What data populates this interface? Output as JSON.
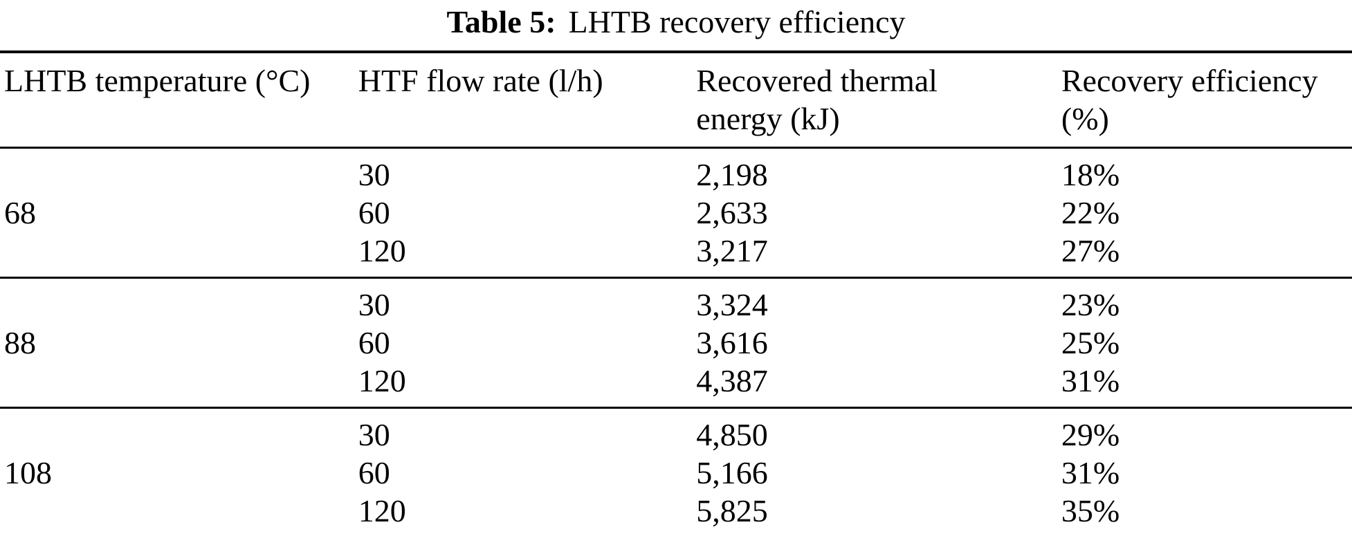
{
  "caption": {
    "label": "Table 5:",
    "text": "LHTB recovery efficiency"
  },
  "table": {
    "columns": [
      "LHTB temperature (°C)",
      "HTF flow rate (l/h)",
      "Recovered thermal\nenergy (kJ)",
      "Recovery efficiency\n(%)"
    ],
    "groups": [
      {
        "temperature": "68",
        "rows": [
          {
            "flow": "30",
            "energy": "2,198",
            "efficiency": "18%"
          },
          {
            "flow": "60",
            "energy": "2,633",
            "efficiency": "22%"
          },
          {
            "flow": "120",
            "energy": "3,217",
            "efficiency": "27%"
          }
        ]
      },
      {
        "temperature": "88",
        "rows": [
          {
            "flow": "30",
            "energy": "3,324",
            "efficiency": "23%"
          },
          {
            "flow": "60",
            "energy": "3,616",
            "efficiency": "25%"
          },
          {
            "flow": "120",
            "energy": "4,387",
            "efficiency": "31%"
          }
        ]
      },
      {
        "temperature": "108",
        "rows": [
          {
            "flow": "30",
            "energy": "4,850",
            "efficiency": "29%"
          },
          {
            "flow": "60",
            "energy": "5,166",
            "efficiency": "31%"
          },
          {
            "flow": "120",
            "energy": "5,825",
            "efficiency": "35%"
          }
        ]
      }
    ]
  },
  "colors": {
    "text": "#000000",
    "background": "#ffffff",
    "rule": "#000000"
  }
}
